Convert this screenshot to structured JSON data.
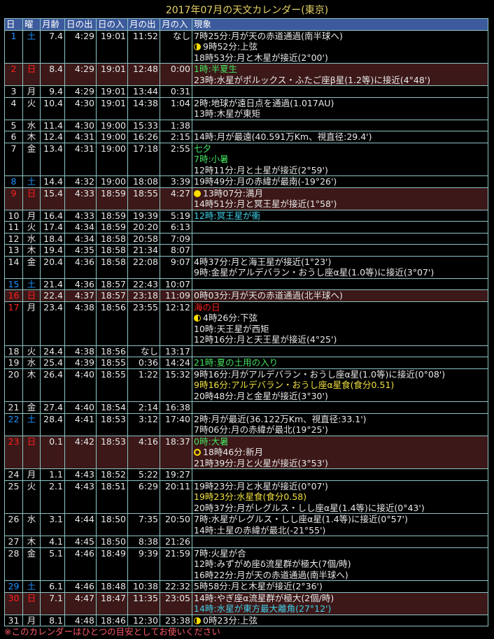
{
  "title": "2017年07月の天文カレンダー(東京)",
  "headers": [
    "日",
    "曜",
    "月齢",
    "日の出",
    "日の入",
    "月の出",
    "月の入",
    "現象"
  ],
  "colors": {
    "header_bg": "#3c5a9c",
    "sunday_row_bg": "#3c1818",
    "saturday": "#1e90ff",
    "sunday": "#ff2020",
    "green": "#44e060",
    "cyan": "#40d0e8",
    "yellow": "#f0e040",
    "title": "#e8d468"
  },
  "days": [
    {
      "d": "1",
      "w": "土",
      "type": "sat",
      "age": "7.4",
      "sr": "4:29",
      "ss": "19:01",
      "mr": "11:52",
      "ms": "なし",
      "ev": [
        {
          "t": "7時25分:月が天の赤道通過(南半球へ)"
        },
        {
          "t": "9時52分:上弦",
          "icon": "first-quarter-moon"
        },
        {
          "t": "18時53分:月と木星が接近(2°00')"
        }
      ]
    },
    {
      "d": "2",
      "w": "日",
      "type": "sun",
      "age": "8.4",
      "sr": "4:29",
      "ss": "19:01",
      "mr": "12:48",
      "ms": "0:00",
      "ev": [
        {
          "t": "1時:半夏生",
          "c": "green"
        },
        {
          "t": "23時:水星がポルックス・ふたご座β星(1.2等)に接近(4°48')"
        }
      ]
    },
    {
      "d": "3",
      "w": "月",
      "age": "9.4",
      "sr": "4:29",
      "ss": "19:01",
      "mr": "13:44",
      "ms": "0:31",
      "ev": []
    },
    {
      "d": "4",
      "w": "火",
      "age": "10.4",
      "sr": "4:30",
      "ss": "19:01",
      "mr": "14:38",
      "ms": "1:04",
      "ev": [
        {
          "t": "2時:地球が遠日点を通過(1.017AU)"
        },
        {
          "t": "13時:木星が東矩"
        }
      ]
    },
    {
      "d": "5",
      "w": "水",
      "age": "11.4",
      "sr": "4:30",
      "ss": "19:00",
      "mr": "15:33",
      "ms": "1:38",
      "ev": []
    },
    {
      "d": "6",
      "w": "木",
      "age": "12.4",
      "sr": "4:31",
      "ss": "19:00",
      "mr": "16:26",
      "ms": "2:15",
      "ev": [
        {
          "t": "14時:月が最遠(40.591万Km、視直径:29.4')"
        }
      ]
    },
    {
      "d": "7",
      "w": "金",
      "age": "13.4",
      "sr": "4:31",
      "ss": "19:00",
      "mr": "17:18",
      "ms": "2:55",
      "ev": [
        {
          "t": "七夕",
          "c": "green"
        },
        {
          "t": "7時:小暑",
          "c": "green"
        },
        {
          "t": "12時11分:月と土星が接近(2°59')"
        }
      ]
    },
    {
      "d": "8",
      "w": "土",
      "type": "sat",
      "age": "14.4",
      "sr": "4:32",
      "ss": "19:00",
      "mr": "18:08",
      "ms": "3:39",
      "ev": [
        {
          "t": "19時49分:月の赤緯が最南(-19°26')"
        }
      ]
    },
    {
      "d": "9",
      "w": "日",
      "type": "sun",
      "age": "15.4",
      "sr": "4:33",
      "ss": "18:59",
      "mr": "18:55",
      "ms": "4:27",
      "ev": [
        {
          "t": "13時07分:満月",
          "icon": "full-moon"
        },
        {
          "t": "14時51分:月と冥王星が接近(1°58')"
        }
      ]
    },
    {
      "d": "10",
      "w": "月",
      "age": "16.4",
      "sr": "4:33",
      "ss": "18:59",
      "mr": "19:39",
      "ms": "5:19",
      "ev": [
        {
          "t": "12時:冥王星が衝",
          "c": "cyan"
        }
      ]
    },
    {
      "d": "11",
      "w": "火",
      "age": "17.4",
      "sr": "4:34",
      "ss": "18:59",
      "mr": "20:20",
      "ms": "6:13",
      "ev": []
    },
    {
      "d": "12",
      "w": "水",
      "age": "18.4",
      "sr": "4:34",
      "ss": "18:58",
      "mr": "20:58",
      "ms": "7:09",
      "ev": []
    },
    {
      "d": "13",
      "w": "木",
      "age": "19.4",
      "sr": "4:35",
      "ss": "18:58",
      "mr": "21:34",
      "ms": "8:07",
      "ev": []
    },
    {
      "d": "14",
      "w": "金",
      "age": "20.4",
      "sr": "4:36",
      "ss": "18:58",
      "mr": "22:08",
      "ms": "9:07",
      "ev": [
        {
          "t": "4時37分:月と海王星が接近(1°23')"
        },
        {
          "t": "9時:金星がアルデバラン・おうし座α星(1.0等)に接近(3°07')"
        }
      ]
    },
    {
      "d": "15",
      "w": "土",
      "type": "sat",
      "age": "21.4",
      "sr": "4:36",
      "ss": "18:57",
      "mr": "22:43",
      "ms": "10:07",
      "ev": []
    },
    {
      "d": "16",
      "w": "日",
      "type": "sun",
      "age": "22.4",
      "sr": "4:37",
      "ss": "18:57",
      "mr": "23:18",
      "ms": "11:09",
      "ev": [
        {
          "t": "0時03分:月が天の赤道通過(北半球へ)"
        }
      ]
    },
    {
      "d": "17",
      "w": "月",
      "type": "holiday",
      "age": "23.4",
      "sr": "4:38",
      "ss": "18:56",
      "mr": "23:55",
      "ms": "12:12",
      "ev": [
        {
          "t": "海の日",
          "c": "red"
        },
        {
          "t": "4時26分:下弦",
          "icon": "last-quarter-moon"
        },
        {
          "t": "10時:天王星が西矩"
        },
        {
          "t": "12時16分:月と天王星が接近(4°25')"
        }
      ]
    },
    {
      "d": "18",
      "w": "火",
      "age": "24.4",
      "sr": "4:38",
      "ss": "18:56",
      "mr": "なし",
      "ms": "13:17",
      "ev": []
    },
    {
      "d": "19",
      "w": "水",
      "age": "25.4",
      "sr": "4:39",
      "ss": "18:55",
      "mr": "0:36",
      "ms": "14:24",
      "ev": [
        {
          "t": "21時:夏の土用の入り",
          "c": "green"
        }
      ]
    },
    {
      "d": "20",
      "w": "木",
      "age": "26.4",
      "sr": "4:40",
      "ss": "18:55",
      "mr": "1:22",
      "ms": "15:32",
      "ev": [
        {
          "t": "9時16分:月がアルデバラン・おうし座α星(1.0等)に接近(0°08')"
        },
        {
          "t": "9時16分:アルデバラン・おうし座α星食(食分0.51)",
          "c": "yellow"
        },
        {
          "t": "20時48分:月と金星が接近(3°30')"
        }
      ]
    },
    {
      "d": "21",
      "w": "金",
      "age": "27.4",
      "sr": "4:40",
      "ss": "18:54",
      "mr": "2:14",
      "ms": "16:38",
      "ev": []
    },
    {
      "d": "22",
      "w": "土",
      "type": "sat",
      "age": "28.4",
      "sr": "4:41",
      "ss": "18:53",
      "mr": "3:12",
      "ms": "17:40",
      "ev": [
        {
          "t": "2時:月が最近(36.122万Km、視直径:33.1')"
        },
        {
          "t": "7時06分:月の赤緯が最北(19°25')"
        }
      ]
    },
    {
      "d": "23",
      "w": "日",
      "type": "sun",
      "age": "0.1",
      "sr": "4:42",
      "ss": "18:53",
      "mr": "4:16",
      "ms": "18:37",
      "ev": [
        {
          "t": "0時:大暑",
          "c": "green"
        },
        {
          "t": "18時46分:新月",
          "icon": "new-moon"
        },
        {
          "t": "21時39分:月と火星が接近(3°53')"
        }
      ]
    },
    {
      "d": "24",
      "w": "月",
      "age": "1.1",
      "sr": "4:43",
      "ss": "18:52",
      "mr": "5:22",
      "ms": "19:27",
      "ev": []
    },
    {
      "d": "25",
      "w": "火",
      "age": "2.1",
      "sr": "4:43",
      "ss": "18:51",
      "mr": "6:29",
      "ms": "20:11",
      "ev": [
        {
          "t": "19時23分:月と水星が接近(0°07')"
        },
        {
          "t": "19時23分:水星食(食分0.58)",
          "c": "yellow"
        },
        {
          "t": "20時37分:月がレグルス・しし座α星(1.4等)に接近(0°43')"
        }
      ]
    },
    {
      "d": "26",
      "w": "水",
      "age": "3.1",
      "sr": "4:44",
      "ss": "18:50",
      "mr": "7:35",
      "ms": "20:50",
      "ev": [
        {
          "t": "7時:水星がレグルス・しし座α星(1.4等)に接近(0°57')"
        },
        {
          "t": "14時:土星の赤緯が最北(-21°55')"
        }
      ]
    },
    {
      "d": "27",
      "w": "木",
      "age": "4.1",
      "sr": "4:45",
      "ss": "18:50",
      "mr": "8:38",
      "ms": "21:26",
      "ev": []
    },
    {
      "d": "28",
      "w": "金",
      "age": "5.1",
      "sr": "4:46",
      "ss": "18:49",
      "mr": "9:39",
      "ms": "21:59",
      "ev": [
        {
          "t": "7時:火星が合"
        },
        {
          "t": "12時:みずがめ座δ流星群が極大(7個/時)"
        },
        {
          "t": "16時22分:月が天の赤道通過(南半球へ)"
        }
      ]
    },
    {
      "d": "29",
      "w": "土",
      "type": "sat",
      "age": "6.1",
      "sr": "4:46",
      "ss": "18:48",
      "mr": "10:38",
      "ms": "22:32",
      "ev": [
        {
          "t": "5時58分:月と木星が接近(2°36')"
        }
      ]
    },
    {
      "d": "30",
      "w": "日",
      "type": "sun",
      "age": "7.1",
      "sr": "4:47",
      "ss": "18:47",
      "mr": "11:35",
      "ms": "23:05",
      "ev": [
        {
          "t": "14時:やぎ座α流星群が極大(2個/時)"
        },
        {
          "t": "14時:水星が東方最大離角(27°12')",
          "c": "cyan"
        }
      ]
    },
    {
      "d": "31",
      "w": "月",
      "age": "8.1",
      "sr": "4:48",
      "ss": "18:46",
      "mr": "12:30",
      "ms": "23:38",
      "ev": [
        {
          "t": "0時23分:上弦",
          "icon": "first-quarter-moon"
        }
      ]
    }
  ],
  "footnote": "※このカレンダーはひとつの目安としてお使いください"
}
